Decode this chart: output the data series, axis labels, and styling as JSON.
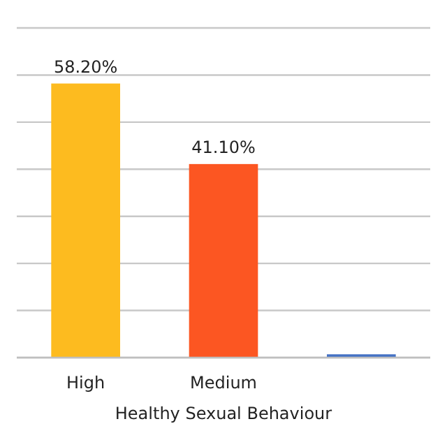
{
  "chart_data": {
    "type": "bar",
    "xlabel": "Healthy Sexual Behaviour",
    "categories": [
      "High",
      "Medium",
      null
    ],
    "values": [
      58.2,
      41.1,
      0.7
    ],
    "colors": [
      "#fdbb1f",
      "#fc5622",
      "#4472c4"
    ],
    "value_labels": [
      "58.20%",
      "41.10%",
      null
    ],
    "ylim": [
      0,
      70
    ],
    "yticks": [
      {
        "value": 0,
        "label": null
      },
      {
        "value": 10,
        "label": null
      },
      {
        "value": 20,
        "label": null
      },
      {
        "value": 30,
        "label": null
      },
      {
        "value": 40,
        "label": null
      },
      {
        "value": 50,
        "label": null
      },
      {
        "value": 60,
        "label": null
      },
      {
        "value": 70,
        "label": null
      }
    ],
    "grid": true,
    "tick_labels": "x"
  }
}
